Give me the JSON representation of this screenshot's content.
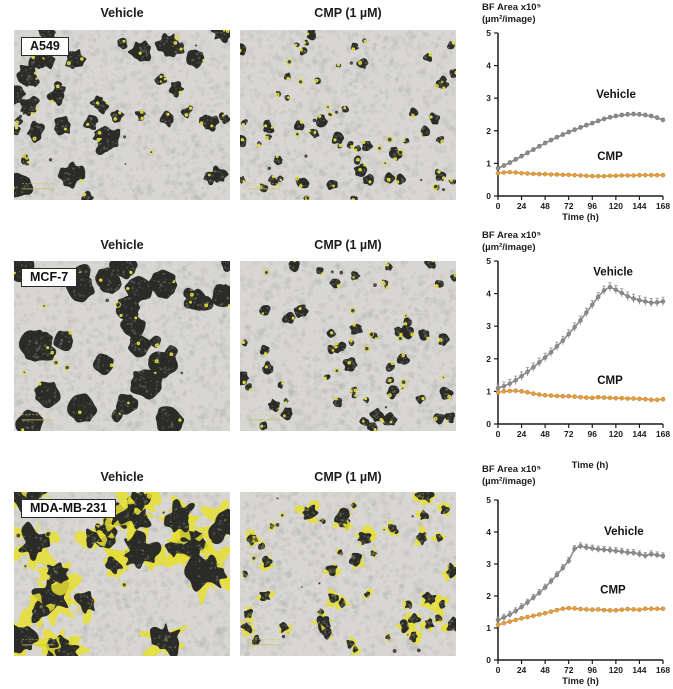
{
  "figure": {
    "rows": [
      {
        "cell_line": "A549",
        "col_headers": [
          "Vehicle",
          "CMP (1 µM)"
        ]
      },
      {
        "cell_line": "MCF-7",
        "col_headers": [
          "Vehicle",
          "CMP (1 µM)"
        ]
      },
      {
        "cell_line": "MDA-MB-231",
        "col_headers": [
          "Vehicle",
          "CMP (1 µM)"
        ]
      }
    ]
  },
  "colors": {
    "vehicle_gray": "#8b8b8b",
    "cmp_orange": "#e79f3c",
    "axis_black": "#1c1c1c",
    "outline_yellow": "#e4dd33",
    "micrograph_bg": "#d7d6d2",
    "spheroid_dark": "#2b2b28"
  },
  "chart_data": [
    {
      "type": "line",
      "cell_line": "A549",
      "title_lines": [
        "BF Area x10⁵",
        "(µm²/image)"
      ],
      "xlabel": "Time (h)",
      "ylim": [
        0,
        5
      ],
      "yticks": [
        0,
        1,
        2,
        3,
        4,
        5
      ],
      "xticks": [
        0,
        24,
        48,
        72,
        96,
        120,
        144,
        168
      ],
      "x": [
        0,
        6,
        12,
        18,
        24,
        30,
        36,
        42,
        48,
        54,
        60,
        66,
        72,
        78,
        84,
        90,
        96,
        102,
        108,
        114,
        120,
        126,
        132,
        138,
        144,
        150,
        156,
        162,
        168
      ],
      "series": [
        {
          "name": "Vehicle",
          "color": "#8b8b8b",
          "error": 0.06,
          "label_pos": [
            100,
            3.0
          ],
          "values": [
            0.85,
            0.93,
            1.02,
            1.12,
            1.22,
            1.32,
            1.42,
            1.52,
            1.62,
            1.71,
            1.8,
            1.88,
            1.96,
            2.03,
            2.1,
            2.17,
            2.23,
            2.3,
            2.36,
            2.41,
            2.45,
            2.48,
            2.5,
            2.51,
            2.5,
            2.48,
            2.45,
            2.4,
            2.33
          ]
        },
        {
          "name": "CMP",
          "color": "#e79f3c",
          "error": 0.03,
          "label_pos": [
            101,
            1.1
          ],
          "values": [
            0.7,
            0.72,
            0.73,
            0.72,
            0.7,
            0.69,
            0.68,
            0.67,
            0.67,
            0.66,
            0.66,
            0.65,
            0.65,
            0.64,
            0.63,
            0.62,
            0.61,
            0.61,
            0.61,
            0.62,
            0.62,
            0.63,
            0.63,
            0.63,
            0.64,
            0.64,
            0.64,
            0.64,
            0.64
          ]
        }
      ]
    },
    {
      "type": "line",
      "cell_line": "MCF-7",
      "title_lines": [
        "BF Area x10⁵",
        "(µm²/image)"
      ],
      "xlabel": "Time (h)",
      "ylim": [
        0,
        5
      ],
      "yticks": [
        0,
        1,
        2,
        3,
        4,
        5
      ],
      "xticks": [
        0,
        24,
        48,
        72,
        96,
        120,
        144,
        168
      ],
      "x": [
        0,
        6,
        12,
        18,
        24,
        30,
        36,
        42,
        48,
        54,
        60,
        66,
        72,
        78,
        84,
        90,
        96,
        102,
        108,
        114,
        120,
        126,
        132,
        138,
        144,
        150,
        156,
        162,
        168
      ],
      "series": [
        {
          "name": "Vehicle",
          "color": "#8b8b8b",
          "error": 0.13,
          "label_pos": [
            97,
            4.55
          ],
          "values": [
            1.1,
            1.16,
            1.24,
            1.34,
            1.47,
            1.6,
            1.74,
            1.89,
            2.04,
            2.2,
            2.38,
            2.56,
            2.76,
            2.97,
            3.18,
            3.42,
            3.66,
            3.9,
            4.1,
            4.2,
            4.12,
            4.02,
            3.92,
            3.85,
            3.8,
            3.76,
            3.72,
            3.73,
            3.76
          ]
        },
        {
          "name": "CMP",
          "color": "#e79f3c",
          "error": 0.05,
          "label_pos": [
            101,
            1.22
          ],
          "values": [
            0.97,
            1.0,
            1.01,
            1.02,
            1.0,
            0.97,
            0.93,
            0.9,
            0.88,
            0.87,
            0.86,
            0.85,
            0.85,
            0.84,
            0.82,
            0.81,
            0.8,
            0.82,
            0.81,
            0.8,
            0.79,
            0.79,
            0.78,
            0.78,
            0.77,
            0.76,
            0.74,
            0.74,
            0.76
          ]
        }
      ]
    },
    {
      "type": "line",
      "cell_line": "MDA-MB-231",
      "title_lines": [
        "BF Area x10⁵",
        "(µm²/image)"
      ],
      "xlabel": "Time (h)",
      "ylim": [
        0,
        5
      ],
      "yticks": [
        0,
        1,
        2,
        3,
        4,
        5
      ],
      "xticks": [
        0,
        24,
        48,
        72,
        96,
        120,
        144,
        168
      ],
      "x": [
        0,
        6,
        12,
        18,
        24,
        30,
        36,
        42,
        48,
        54,
        60,
        66,
        72,
        78,
        84,
        90,
        96,
        102,
        108,
        114,
        120,
        126,
        132,
        138,
        144,
        150,
        156,
        162,
        168
      ],
      "series": [
        {
          "name": "Vehicle",
          "color": "#8b8b8b",
          "error": 0.1,
          "label_pos": [
            108,
            3.9
          ],
          "values": [
            1.25,
            1.33,
            1.42,
            1.53,
            1.66,
            1.8,
            1.95,
            2.1,
            2.27,
            2.46,
            2.66,
            2.88,
            3.1,
            3.48,
            3.56,
            3.52,
            3.49,
            3.46,
            3.45,
            3.43,
            3.41,
            3.39,
            3.36,
            3.35,
            3.31,
            3.26,
            3.31,
            3.28,
            3.25
          ]
        },
        {
          "name": "CMP",
          "color": "#e79f3c",
          "error": 0.05,
          "label_pos": [
            104,
            2.08
          ],
          "values": [
            1.1,
            1.15,
            1.2,
            1.25,
            1.3,
            1.34,
            1.38,
            1.42,
            1.46,
            1.51,
            1.56,
            1.6,
            1.62,
            1.61,
            1.59,
            1.58,
            1.57,
            1.58,
            1.56,
            1.55,
            1.55,
            1.57,
            1.59,
            1.58,
            1.57,
            1.6,
            1.6,
            1.6,
            1.6
          ]
        }
      ]
    }
  ],
  "micrographs": {
    "a549_vehicle": {
      "seed": 101,
      "count": 38,
      "rmin": 3.5,
      "rmax": 12,
      "wobble": 0.38,
      "style": "round",
      "dots": 8,
      "cluster": 0.4
    },
    "a549_cmp": {
      "seed": 202,
      "count": 58,
      "rmin": 2.2,
      "rmax": 6,
      "wobble": 0.3,
      "style": "round",
      "dots": 20,
      "cluster": 0.1
    },
    "mcf7_vehicle": {
      "seed": 303,
      "count": 30,
      "rmin": 5,
      "rmax": 16,
      "wobble": 0.17,
      "style": "round",
      "dots": 8,
      "cluster": 0.15
    },
    "mcf7_cmp": {
      "seed": 404,
      "count": 52,
      "rmin": 2.5,
      "rmax": 7,
      "wobble": 0.3,
      "style": "round",
      "dots": 14,
      "cluster": 0.1
    },
    "mda_vehicle": {
      "seed": 505,
      "count": 20,
      "rmin": 6,
      "rmax": 17,
      "wobble": 0.5,
      "style": "spiky",
      "dots": 6,
      "cluster": 0.3
    },
    "mda_cmp": {
      "seed": 606,
      "count": 48,
      "rmin": 2.5,
      "rmax": 7.5,
      "wobble": 0.5,
      "style": "spiky",
      "dots": 12,
      "cluster": 0.1
    }
  }
}
